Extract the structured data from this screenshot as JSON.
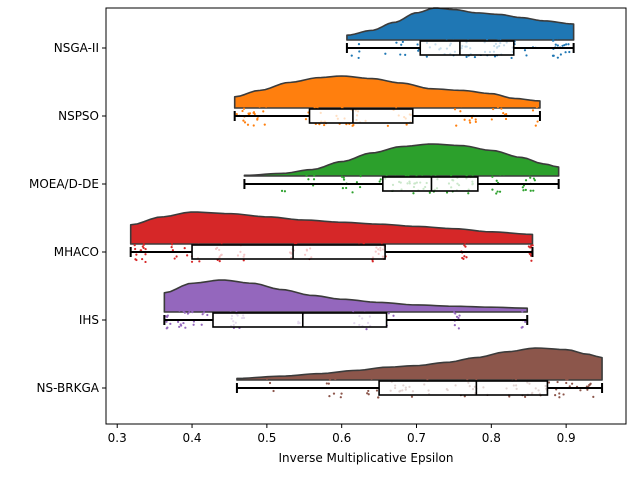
{
  "chart_data": {
    "type": "raincloud",
    "title": "",
    "xlabel": "Inverse Multiplicative Epsilon",
    "ylabel": "",
    "xlim": [
      0.285,
      0.98
    ],
    "xticks": [
      0.3,
      0.4,
      0.5,
      0.6,
      0.7,
      0.8,
      0.9
    ],
    "xtick_labels": [
      "0.3",
      "0.4",
      "0.5",
      "0.6",
      "0.7",
      "0.8",
      "0.9"
    ],
    "grid": false,
    "series": [
      {
        "name": "NSGA-II",
        "color": "#1f77b4",
        "whisker_min": 0.607,
        "q1": 0.705,
        "median": 0.758,
        "q3": 0.83,
        "whisker_max": 0.91,
        "density": [
          [
            0.607,
            0.15
          ],
          [
            0.64,
            0.3
          ],
          [
            0.67,
            0.55
          ],
          [
            0.7,
            0.85
          ],
          [
            0.725,
            1.0
          ],
          [
            0.75,
            0.95
          ],
          [
            0.78,
            0.85
          ],
          [
            0.81,
            0.8
          ],
          [
            0.84,
            0.7
          ],
          [
            0.87,
            0.6
          ],
          [
            0.91,
            0.5
          ]
        ],
        "point_clusters": [
          [
            0.61,
            0.63,
            4
          ],
          [
            0.65,
            0.69,
            6
          ],
          [
            0.7,
            0.86,
            60
          ],
          [
            0.88,
            0.905,
            18
          ]
        ]
      },
      {
        "name": "NSPSO",
        "color": "#ff7f0e",
        "whisker_min": 0.457,
        "q1": 0.557,
        "median": 0.615,
        "q3": 0.695,
        "whisker_max": 0.865,
        "density": [
          [
            0.457,
            0.35
          ],
          [
            0.49,
            0.55
          ],
          [
            0.53,
            0.8
          ],
          [
            0.57,
            0.95
          ],
          [
            0.6,
            1.0
          ],
          [
            0.64,
            0.92
          ],
          [
            0.68,
            0.78
          ],
          [
            0.72,
            0.6
          ],
          [
            0.76,
            0.55
          ],
          [
            0.8,
            0.45
          ],
          [
            0.83,
            0.3
          ],
          [
            0.865,
            0.22
          ]
        ],
        "point_clusters": [
          [
            0.458,
            0.5,
            22
          ],
          [
            0.55,
            0.64,
            30
          ],
          [
            0.66,
            0.7,
            10
          ],
          [
            0.75,
            0.78,
            12
          ],
          [
            0.8,
            0.82,
            10
          ],
          [
            0.85,
            0.865,
            4
          ]
        ]
      },
      {
        "name": "MOEA/D-DE",
        "color": "#2ca02c",
        "whisker_min": 0.47,
        "q1": 0.655,
        "median": 0.72,
        "q3": 0.782,
        "whisker_max": 0.89,
        "density": [
          [
            0.47,
            0.02
          ],
          [
            0.52,
            0.08
          ],
          [
            0.56,
            0.2
          ],
          [
            0.6,
            0.45
          ],
          [
            0.64,
            0.72
          ],
          [
            0.68,
            0.92
          ],
          [
            0.72,
            1.0
          ],
          [
            0.76,
            0.95
          ],
          [
            0.8,
            0.8
          ],
          [
            0.84,
            0.58
          ],
          [
            0.87,
            0.38
          ],
          [
            0.89,
            0.28
          ]
        ],
        "point_clusters": [
          [
            0.52,
            0.53,
            2
          ],
          [
            0.55,
            0.57,
            5
          ],
          [
            0.6,
            0.63,
            10
          ],
          [
            0.65,
            0.78,
            55
          ],
          [
            0.8,
            0.82,
            10
          ],
          [
            0.84,
            0.86,
            12
          ]
        ]
      },
      {
        "name": "MHACO",
        "color": "#d62728",
        "whisker_min": 0.318,
        "q1": 0.4,
        "median": 0.535,
        "q3": 0.658,
        "whisker_max": 0.855,
        "density": [
          [
            0.318,
            0.6
          ],
          [
            0.36,
            0.85
          ],
          [
            0.4,
            1.0
          ],
          [
            0.45,
            0.95
          ],
          [
            0.5,
            0.85
          ],
          [
            0.55,
            0.75
          ],
          [
            0.6,
            0.68
          ],
          [
            0.65,
            0.62
          ],
          [
            0.7,
            0.55
          ],
          [
            0.75,
            0.48
          ],
          [
            0.8,
            0.38
          ],
          [
            0.855,
            0.3
          ]
        ],
        "point_clusters": [
          [
            0.32,
            0.34,
            15
          ],
          [
            0.37,
            0.38,
            5
          ],
          [
            0.39,
            0.41,
            8
          ],
          [
            0.43,
            0.44,
            10
          ],
          [
            0.46,
            0.47,
            6
          ],
          [
            0.53,
            0.54,
            8
          ],
          [
            0.55,
            0.56,
            6
          ],
          [
            0.62,
            0.66,
            20
          ],
          [
            0.76,
            0.77,
            10
          ],
          [
            0.85,
            0.856,
            12
          ]
        ]
      },
      {
        "name": "IHS",
        "color": "#9467bd",
        "whisker_min": 0.363,
        "q1": 0.428,
        "median": 0.548,
        "q3": 0.66,
        "whisker_max": 0.848,
        "density": [
          [
            0.363,
            0.6
          ],
          [
            0.4,
            0.9
          ],
          [
            0.44,
            1.0
          ],
          [
            0.48,
            0.9
          ],
          [
            0.52,
            0.7
          ],
          [
            0.56,
            0.52
          ],
          [
            0.6,
            0.4
          ],
          [
            0.65,
            0.3
          ],
          [
            0.7,
            0.22
          ],
          [
            0.75,
            0.18
          ],
          [
            0.8,
            0.15
          ],
          [
            0.848,
            0.12
          ]
        ],
        "point_clusters": [
          [
            0.365,
            0.4,
            18
          ],
          [
            0.4,
            0.43,
            10
          ],
          [
            0.45,
            0.47,
            16
          ],
          [
            0.54,
            0.55,
            4
          ],
          [
            0.61,
            0.64,
            12
          ],
          [
            0.66,
            0.67,
            3
          ],
          [
            0.75,
            0.76,
            8
          ],
          [
            0.84,
            0.848,
            5
          ]
        ]
      },
      {
        "name": "NS-BRKGA",
        "color": "#8c564b",
        "whisker_min": 0.46,
        "q1": 0.65,
        "median": 0.78,
        "q3": 0.875,
        "whisker_max": 0.948,
        "density": [
          [
            0.46,
            0.05
          ],
          [
            0.52,
            0.12
          ],
          [
            0.57,
            0.2
          ],
          [
            0.62,
            0.3
          ],
          [
            0.66,
            0.4
          ],
          [
            0.7,
            0.45
          ],
          [
            0.74,
            0.55
          ],
          [
            0.78,
            0.7
          ],
          [
            0.82,
            0.88
          ],
          [
            0.86,
            1.0
          ],
          [
            0.9,
            0.95
          ],
          [
            0.93,
            0.8
          ],
          [
            0.948,
            0.7
          ]
        ],
        "point_clusters": [
          [
            0.5,
            0.51,
            3
          ],
          [
            0.56,
            0.6,
            8
          ],
          [
            0.63,
            0.72,
            25
          ],
          [
            0.74,
            0.8,
            15
          ],
          [
            0.82,
            0.94,
            45
          ]
        ]
      }
    ]
  }
}
